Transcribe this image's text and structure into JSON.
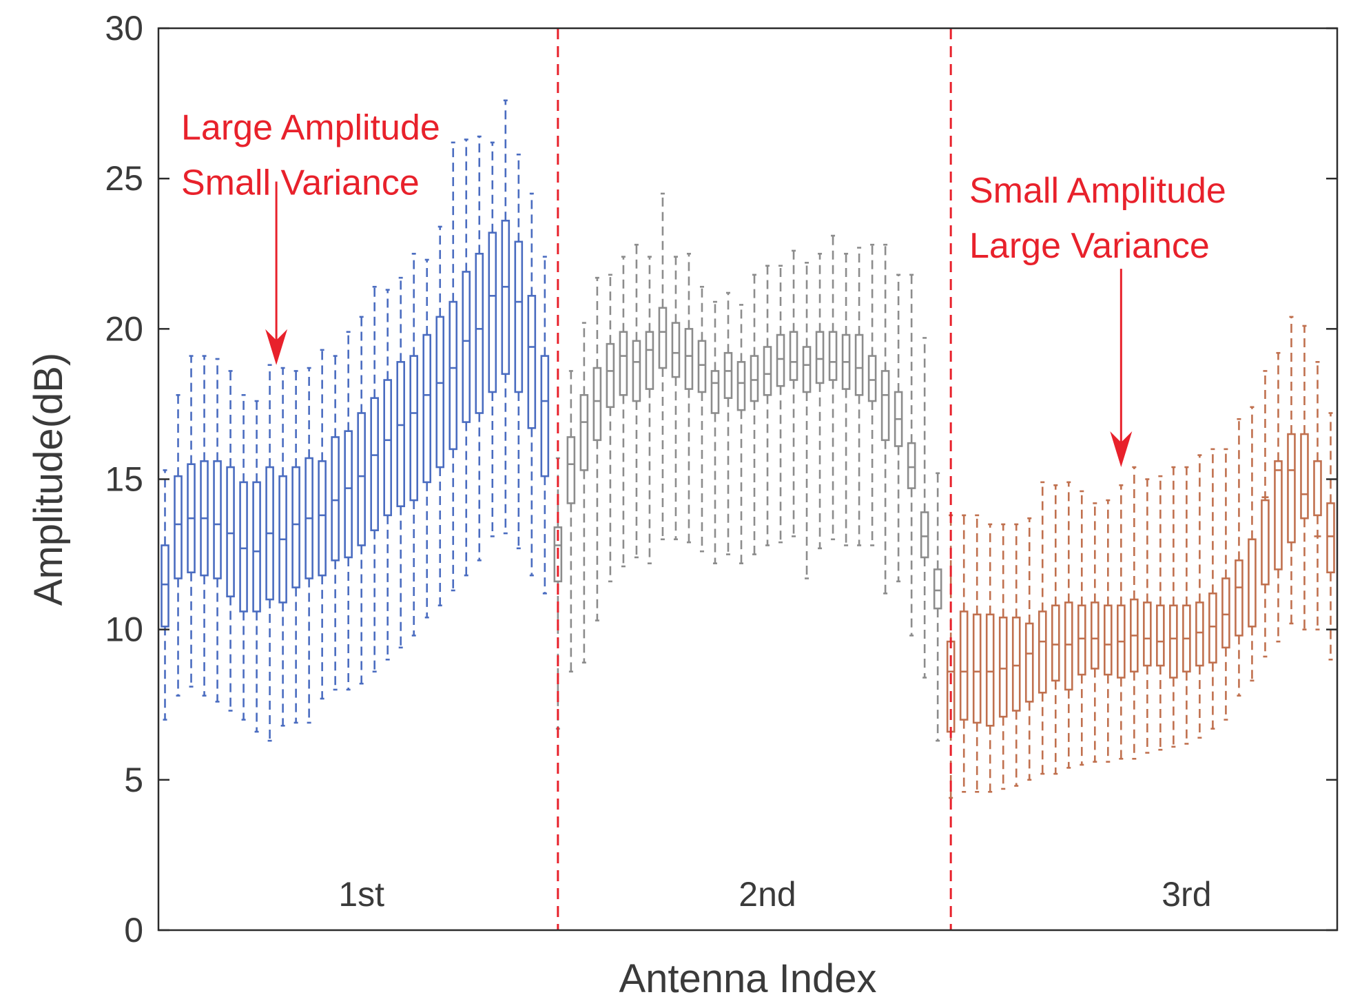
{
  "chart_data": {
    "type": "boxplot",
    "title": "",
    "xlabel": "Antenna Index",
    "ylabel": "Amplitude(dB)",
    "ylim": [
      0,
      30
    ],
    "yticks": [
      0,
      5,
      10,
      15,
      20,
      25,
      30
    ],
    "box_count": 90,
    "separators": [
      30.5,
      60.5
    ],
    "group_labels": [
      {
        "text": "1st",
        "x_index": 15.5
      },
      {
        "text": "2nd",
        "x_index": 46.5
      },
      {
        "text": "3rd",
        "x_index": 78.5
      }
    ],
    "annotations": [
      {
        "lines": [
          "Large Amplitude",
          "Small Variance"
        ],
        "x_index": 9,
        "text_y": 26.3,
        "arrow_from": 24.9,
        "arrow_to": 18.8
      },
      {
        "lines": [
          "Small Amplitude",
          "Large Variance"
        ],
        "x_index": 73.5,
        "text_y": 24.2,
        "arrow_from": 22.0,
        "arrow_to": 15.4
      }
    ],
    "series": [
      {
        "name": "1st",
        "color": "#4a6cc0",
        "q1": [
          10.1,
          11.7,
          11.9,
          11.8,
          11.7,
          11.1,
          10.6,
          10.6,
          11.0,
          10.9,
          11.4,
          11.7,
          11.8,
          12.3,
          12.4,
          12.8,
          13.3,
          13.8,
          14.1,
          14.3,
          14.9,
          15.4,
          16.0,
          16.9,
          17.2,
          17.9,
          18.5,
          17.9,
          16.7,
          15.1
        ],
        "median": [
          11.5,
          13.5,
          13.7,
          13.7,
          13.5,
          13.2,
          12.7,
          12.6,
          13.2,
          13.0,
          13.5,
          13.7,
          13.8,
          14.3,
          14.7,
          15.1,
          15.8,
          16.3,
          16.8,
          17.2,
          17.8,
          18.2,
          18.7,
          19.6,
          20.0,
          21.1,
          21.4,
          20.9,
          19.4,
          17.6
        ],
        "q3": [
          12.8,
          15.1,
          15.5,
          15.6,
          15.6,
          15.4,
          14.9,
          14.9,
          15.4,
          15.1,
          15.4,
          15.7,
          15.6,
          16.4,
          16.6,
          17.2,
          17.7,
          18.3,
          18.9,
          19.1,
          19.8,
          20.4,
          20.9,
          21.9,
          22.5,
          23.2,
          23.6,
          22.9,
          21.1,
          19.1
        ],
        "wlo": [
          7.0,
          7.8,
          8.1,
          7.8,
          7.6,
          7.3,
          7.0,
          6.6,
          6.3,
          6.8,
          6.9,
          6.9,
          7.7,
          8.0,
          8.0,
          8.2,
          8.6,
          9.0,
          9.4,
          9.8,
          10.4,
          10.8,
          11.3,
          11.8,
          12.3,
          13.1,
          13.2,
          12.7,
          11.8,
          11.2
        ],
        "whi": [
          15.3,
          17.8,
          19.1,
          19.1,
          19.0,
          18.6,
          17.8,
          17.6,
          18.8,
          18.7,
          18.6,
          18.7,
          19.3,
          19.1,
          19.9,
          20.4,
          21.4,
          21.3,
          21.7,
          22.5,
          22.3,
          23.4,
          26.2,
          26.3,
          26.4,
          26.2,
          27.6,
          25.8,
          24.5,
          22.4
        ]
      },
      {
        "name": "2nd",
        "color": "#8c8c8c",
        "q1": [
          11.6,
          14.2,
          15.3,
          16.3,
          17.4,
          17.8,
          17.6,
          18.0,
          18.7,
          18.4,
          18.0,
          17.9,
          17.2,
          17.7,
          17.3,
          17.6,
          17.8,
          18.1,
          18.3,
          17.9,
          18.2,
          18.3,
          18.0,
          17.8,
          17.6,
          16.3,
          16.1,
          14.7,
          12.4,
          10.7
        ],
        "median": [
          12.8,
          15.5,
          16.9,
          17.6,
          18.6,
          19.1,
          18.9,
          19.3,
          19.9,
          19.2,
          19.1,
          18.8,
          18.2,
          18.6,
          18.2,
          18.3,
          18.5,
          19.0,
          18.9,
          18.8,
          19.0,
          18.9,
          18.9,
          18.7,
          18.3,
          17.8,
          17.0,
          15.4,
          13.1,
          11.3
        ],
        "q3": [
          13.4,
          16.4,
          17.8,
          18.7,
          19.5,
          19.9,
          19.6,
          19.9,
          20.7,
          20.2,
          20.0,
          19.6,
          18.6,
          19.2,
          18.9,
          19.1,
          19.4,
          19.8,
          19.9,
          19.4,
          19.9,
          19.9,
          19.8,
          19.8,
          19.1,
          18.6,
          17.9,
          16.2,
          13.9,
          12.0
        ],
        "wlo": [
          6.7,
          8.6,
          8.9,
          10.3,
          11.6,
          12.1,
          12.4,
          12.2,
          13.0,
          13.0,
          12.9,
          12.6,
          12.2,
          12.5,
          12.2,
          12.5,
          12.8,
          12.9,
          13.1,
          11.7,
          12.7,
          13.0,
          12.8,
          12.8,
          12.8,
          11.2,
          11.6,
          9.8,
          8.4,
          6.3
        ],
        "whi": [
          15.7,
          18.6,
          20.2,
          21.7,
          21.8,
          22.4,
          22.8,
          22.4,
          24.5,
          22.4,
          22.5,
          21.4,
          20.9,
          21.2,
          20.8,
          21.8,
          22.1,
          22.1,
          22.6,
          22.2,
          22.5,
          23.1,
          22.5,
          22.7,
          22.8,
          22.8,
          21.8,
          21.8,
          19.7,
          15.2
        ]
      },
      {
        "name": "3rd",
        "color": "#c0704e",
        "q1": [
          6.6,
          7.0,
          6.9,
          6.8,
          7.1,
          7.3,
          7.6,
          7.9,
          8.3,
          8.0,
          8.5,
          8.7,
          8.5,
          8.4,
          8.6,
          8.8,
          8.8,
          8.4,
          8.6,
          8.8,
          8.9,
          9.4,
          9.8,
          10.1,
          11.5,
          12.0,
          12.9,
          13.7,
          13.8,
          11.9
        ],
        "median": [
          8.6,
          8.6,
          8.6,
          8.6,
          8.7,
          8.8,
          9.2,
          9.6,
          9.5,
          9.5,
          9.7,
          9.7,
          9.5,
          9.6,
          9.8,
          9.7,
          9.6,
          9.7,
          9.7,
          9.9,
          10.1,
          10.5,
          11.4,
          13.0,
          14.4,
          15.3,
          15.3,
          14.5,
          13.1,
          13.1
        ],
        "q3": [
          9.6,
          10.6,
          10.5,
          10.5,
          10.4,
          10.4,
          10.2,
          10.6,
          10.8,
          10.9,
          10.8,
          10.9,
          10.8,
          10.8,
          11.0,
          10.9,
          10.8,
          10.8,
          10.8,
          10.9,
          11.2,
          11.7,
          12.3,
          13.0,
          14.3,
          15.6,
          16.5,
          16.5,
          15.6,
          14.2
        ],
        "wlo": [
          4.4,
          4.6,
          4.6,
          4.6,
          4.7,
          4.8,
          5.0,
          5.2,
          5.2,
          5.4,
          5.5,
          5.6,
          5.6,
          5.7,
          5.7,
          5.9,
          6.0,
          6.1,
          6.2,
          6.4,
          6.7,
          7.0,
          7.8,
          8.3,
          9.1,
          9.6,
          10.2,
          10.0,
          10.0,
          9.0
        ],
        "whi": [
          13.8,
          13.8,
          13.8,
          13.5,
          13.5,
          13.5,
          13.7,
          14.9,
          14.8,
          14.9,
          14.6,
          14.2,
          14.3,
          14.8,
          15.4,
          15.0,
          15.1,
          15.4,
          15.4,
          15.8,
          16.0,
          16.0,
          17.0,
          17.4,
          18.6,
          19.2,
          20.4,
          20.1,
          18.9,
          17.2
        ]
      }
    ]
  }
}
